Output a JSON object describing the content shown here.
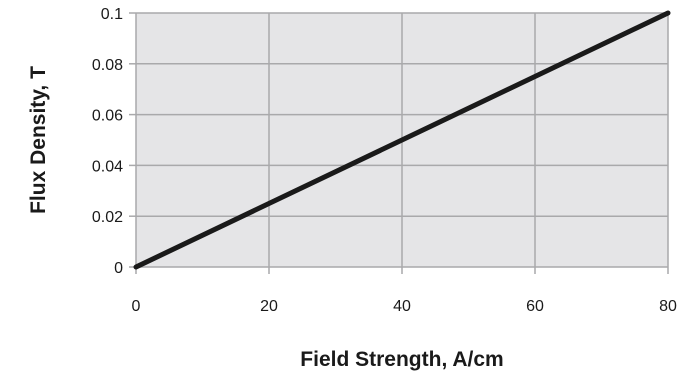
{
  "chart_data": {
    "type": "line",
    "xlabel": "Field Strength, A/cm",
    "ylabel": "Flux Density, T",
    "xlim": [
      0,
      80
    ],
    "ylim": [
      0,
      0.1
    ],
    "x_ticks": [
      0,
      20,
      40,
      60,
      80
    ],
    "y_ticks": [
      0,
      0.02,
      0.04,
      0.06,
      0.08,
      0.1
    ],
    "x_tick_labels": [
      "0",
      "20",
      "40",
      "60",
      "80"
    ],
    "y_tick_labels": [
      "0",
      "0.02",
      "0.04",
      "0.06",
      "0.08",
      "0.1"
    ],
    "grid": true,
    "colors": {
      "plot_background": "#e5e5e7",
      "grid": "#a9a9ab",
      "line": "#1a1a1a"
    },
    "series": [
      {
        "x": [
          0,
          80
        ],
        "y": [
          0,
          0.1
        ]
      }
    ]
  }
}
